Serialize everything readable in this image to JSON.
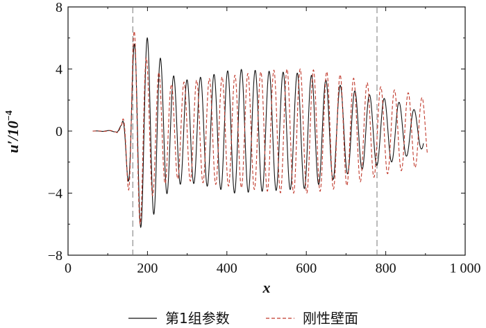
{
  "chart_data": {
    "type": "line",
    "xlabel": "x",
    "ylabel_main": "u′/10",
    "ylabel_exp": "−4",
    "xlim": [
      0,
      1000
    ],
    "ylim": [
      -8,
      8
    ],
    "x_ticks": [
      0,
      200,
      400,
      600,
      800,
      1000
    ],
    "x_tick_labels": [
      "0",
      "200",
      "400",
      "600",
      "800",
      "1 000"
    ],
    "y_ticks": [
      -8,
      -4,
      0,
      4,
      8
    ],
    "y_tick_labels": [
      "−8",
      "−4",
      "0",
      "4",
      "8"
    ],
    "grid": false,
    "legend_position": "bottom-center",
    "vertical_reference_lines": [
      163,
      778
    ],
    "series": [
      {
        "name": "第1组参数",
        "style": "solid",
        "color": "#111111",
        "x_range": [
          62,
          895
        ],
        "envelope_x": [
          62,
          120,
          135,
          145,
          160,
          175,
          200,
          260,
          300,
          360,
          420,
          480,
          540,
          600,
          660,
          720,
          780,
          830,
          870,
          895
        ],
        "envelope_amp": [
          0.0,
          0.05,
          0.4,
          2.0,
          5.0,
          6.3,
          6.0,
          3.6,
          3.3,
          3.6,
          4.0,
          3.9,
          3.8,
          3.7,
          3.2,
          2.6,
          2.2,
          1.9,
          1.4,
          1.1
        ],
        "wavelength": [
          32,
          38
        ],
        "phase": 0.0
      },
      {
        "name": "刚性壁面",
        "style": "dashed",
        "color": "#c0392b",
        "x_range": [
          62,
          905
        ],
        "envelope_x": [
          62,
          120,
          135,
          145,
          160,
          172,
          200,
          260,
          300,
          360,
          420,
          480,
          540,
          600,
          660,
          720,
          780,
          830,
          870,
          905
        ],
        "envelope_amp": [
          0.0,
          0.05,
          0.4,
          2.0,
          6.0,
          6.8,
          4.5,
          3.0,
          3.2,
          3.4,
          3.6,
          3.8,
          4.0,
          4.0,
          3.8,
          3.4,
          2.9,
          2.6,
          2.4,
          2.0
        ],
        "wavelength": [
          30.5,
          35
        ],
        "phase": -1.0
      }
    ]
  }
}
